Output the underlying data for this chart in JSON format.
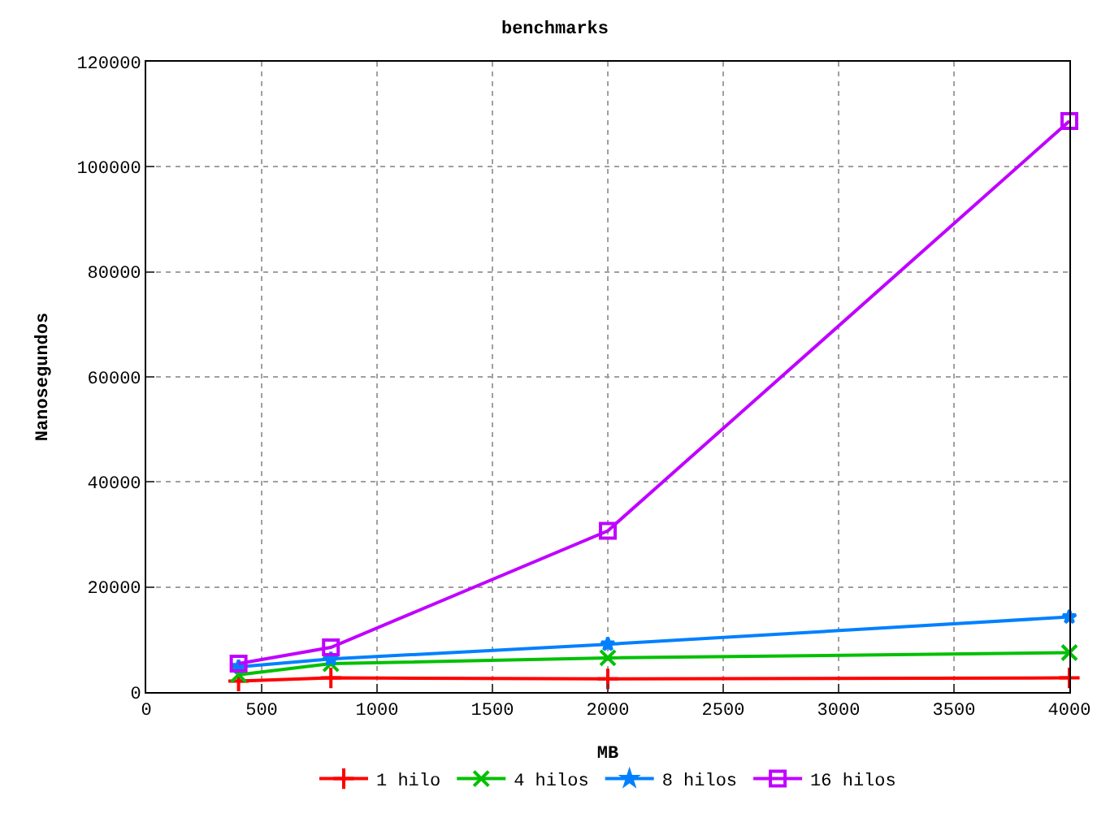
{
  "chart_data": {
    "type": "line",
    "title": "benchmarks",
    "xlabel": "MB",
    "ylabel": "Nanosegundos",
    "x": [
      400,
      800,
      2000,
      4000
    ],
    "series": [
      {
        "name": "1 hilo",
        "color": "#ff0000",
        "marker": "cross",
        "values": [
          2100,
          2700,
          2500,
          2700
        ]
      },
      {
        "name": "4 hilos",
        "color": "#00c000",
        "marker": "x",
        "values": [
          3300,
          5400,
          6500,
          7500
        ]
      },
      {
        "name": "8 hilos",
        "color": "#0080ff",
        "marker": "star",
        "values": [
          4800,
          6300,
          9100,
          14300
        ]
      },
      {
        "name": "16 hilos",
        "color": "#c000ff",
        "marker": "square",
        "values": [
          5400,
          8500,
          30700,
          108700
        ]
      }
    ],
    "xlim": [
      0,
      4000
    ],
    "xticks": [
      0,
      500,
      1000,
      1500,
      2000,
      2500,
      3000,
      3500,
      4000
    ],
    "ylim": [
      0,
      120000
    ],
    "yticks": [
      0,
      20000,
      40000,
      60000,
      80000,
      100000,
      120000
    ],
    "grid": true,
    "legend": "bottom",
    "line_style": "solid"
  }
}
